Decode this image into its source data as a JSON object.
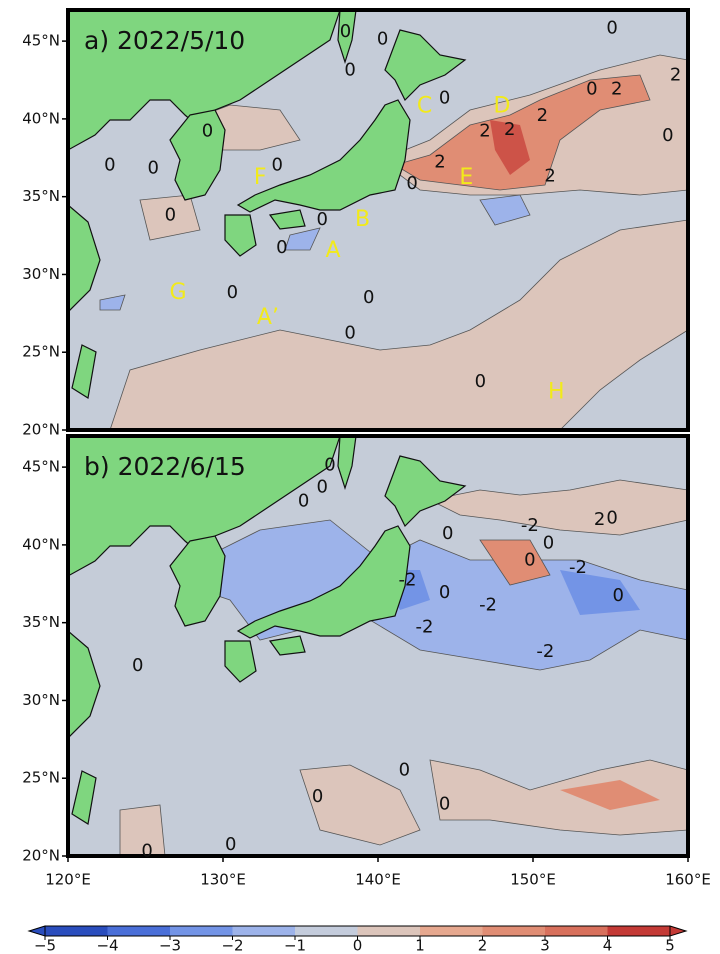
{
  "chart_data": {
    "type": "map",
    "lonlim": [
      120,
      160
    ],
    "latlim": [
      20,
      47
    ],
    "lonticks": [
      {
        "value": 120,
        "label": "120°E"
      },
      {
        "value": 130,
        "label": "130°E"
      },
      {
        "value": 140,
        "label": "140°E"
      },
      {
        "value": 150,
        "label": "150°E"
      },
      {
        "value": 160,
        "label": "160°E"
      }
    ],
    "latticks": [
      {
        "value": 20,
        "label": "20°N"
      },
      {
        "value": 25,
        "label": "25°N"
      },
      {
        "value": 30,
        "label": "30°N"
      },
      {
        "value": 35,
        "label": "35°N"
      },
      {
        "value": 40,
        "label": "40°N"
      },
      {
        "value": 45,
        "label": "45°N"
      }
    ],
    "panels": [
      {
        "title": "a) 2022/5/10",
        "contour_labels": [
          {
            "lon": 137.9,
            "lat": 45.6,
            "value": 0
          },
          {
            "lon": 140.3,
            "lat": 45.1,
            "value": 0
          },
          {
            "lon": 138.2,
            "lat": 43.1,
            "value": 0
          },
          {
            "lon": 144.3,
            "lat": 41.3,
            "value": 0
          },
          {
            "lon": 155.1,
            "lat": 45.8,
            "value": 0
          },
          {
            "lon": 155.4,
            "lat": 41.9,
            "value": 2
          },
          {
            "lon": 153.8,
            "lat": 41.9,
            "value": 0
          },
          {
            "lon": 159.2,
            "lat": 42.8,
            "value": 2
          },
          {
            "lon": 150.6,
            "lat": 40.2,
            "value": 2
          },
          {
            "lon": 146.9,
            "lat": 39.2,
            "value": 2
          },
          {
            "lon": 148.5,
            "lat": 39.3,
            "value": 2
          },
          {
            "lon": 158.7,
            "lat": 38.9,
            "value": 0
          },
          {
            "lon": 144.0,
            "lat": 37.2,
            "value": 2
          },
          {
            "lon": 142.2,
            "lat": 35.8,
            "value": 0
          },
          {
            "lon": 151.1,
            "lat": 36.3,
            "value": 2
          },
          {
            "lon": 129.0,
            "lat": 39.2,
            "value": 0
          },
          {
            "lon": 122.7,
            "lat": 37.0,
            "value": 0
          },
          {
            "lon": 125.5,
            "lat": 36.8,
            "value": 0
          },
          {
            "lon": 133.5,
            "lat": 37.0,
            "value": 0
          },
          {
            "lon": 126.6,
            "lat": 33.8,
            "value": 0
          },
          {
            "lon": 136.4,
            "lat": 33.5,
            "value": 0
          },
          {
            "lon": 133.8,
            "lat": 31.7,
            "value": 0
          },
          {
            "lon": 130.6,
            "lat": 28.8,
            "value": 0
          },
          {
            "lon": 139.4,
            "lat": 28.5,
            "value": 0
          },
          {
            "lon": 138.2,
            "lat": 26.2,
            "value": 0
          },
          {
            "lon": 146.6,
            "lat": 23.1,
            "value": 0
          }
        ],
        "letters": [
          {
            "lon": 143.0,
            "lat": 40.8,
            "text": "C"
          },
          {
            "lon": 148.0,
            "lat": 40.8,
            "text": "D"
          },
          {
            "lon": 132.4,
            "lat": 36.2,
            "text": "F"
          },
          {
            "lon": 145.7,
            "lat": 36.2,
            "text": "E"
          },
          {
            "lon": 139.0,
            "lat": 33.5,
            "text": "B"
          },
          {
            "lon": 137.1,
            "lat": 31.5,
            "text": "A"
          },
          {
            "lon": 127.1,
            "lat": 28.8,
            "text": "G"
          },
          {
            "lon": 132.9,
            "lat": 27.2,
            "text": "A’"
          },
          {
            "lon": 151.5,
            "lat": 22.4,
            "text": "H"
          }
        ]
      },
      {
        "title": "b) 2022/6/15",
        "contour_labels": [
          {
            "lon": 136.9,
            "lat": 45.1,
            "value": 0
          },
          {
            "lon": 136.4,
            "lat": 43.7,
            "value": 0
          },
          {
            "lon": 135.2,
            "lat": 42.8,
            "value": 0
          },
          {
            "lon": 155.1,
            "lat": 41.7,
            "value": 0
          },
          {
            "lon": 154.3,
            "lat": 41.6,
            "value": 2
          },
          {
            "lon": 149.8,
            "lat": 41.2,
            "value": -2
          },
          {
            "lon": 151.0,
            "lat": 40.1,
            "value": 0
          },
          {
            "lon": 144.5,
            "lat": 40.7,
            "value": 0
          },
          {
            "lon": 149.8,
            "lat": 39.0,
            "value": 0
          },
          {
            "lon": 152.9,
            "lat": 38.5,
            "value": -2
          },
          {
            "lon": 141.9,
            "lat": 37.7,
            "value": -2
          },
          {
            "lon": 144.3,
            "lat": 36.9,
            "value": 0
          },
          {
            "lon": 147.1,
            "lat": 36.1,
            "value": -2
          },
          {
            "lon": 155.5,
            "lat": 36.7,
            "value": 0
          },
          {
            "lon": 143.0,
            "lat": 34.7,
            "value": -2
          },
          {
            "lon": 150.8,
            "lat": 33.1,
            "value": -2
          },
          {
            "lon": 124.5,
            "lat": 32.2,
            "value": 0
          },
          {
            "lon": 141.7,
            "lat": 25.5,
            "value": 0
          },
          {
            "lon": 136.1,
            "lat": 23.8,
            "value": 0
          },
          {
            "lon": 144.3,
            "lat": 23.3,
            "value": 0
          },
          {
            "lon": 130.5,
            "lat": 20.7,
            "value": 0
          },
          {
            "lon": 125.1,
            "lat": 20.3,
            "value": 0
          }
        ],
        "letters": []
      }
    ],
    "colorbar": {
      "lim": [
        -5,
        5
      ],
      "ticks": [
        {
          "value": -5,
          "label": "−5"
        },
        {
          "value": -4,
          "label": "−4"
        },
        {
          "value": -3,
          "label": "−3"
        },
        {
          "value": -2,
          "label": "−2"
        },
        {
          "value": -1,
          "label": "−1"
        },
        0,
        1,
        2,
        3,
        4,
        5
      ],
      "colors": [
        "#2a4dbd",
        "#4a6fd8",
        "#7394e6",
        "#9db3ea",
        "#c4ccdc",
        "#dcc5bb",
        "#e6a88f",
        "#e08d74",
        "#d8705c",
        "#c43a36"
      ]
    }
  }
}
